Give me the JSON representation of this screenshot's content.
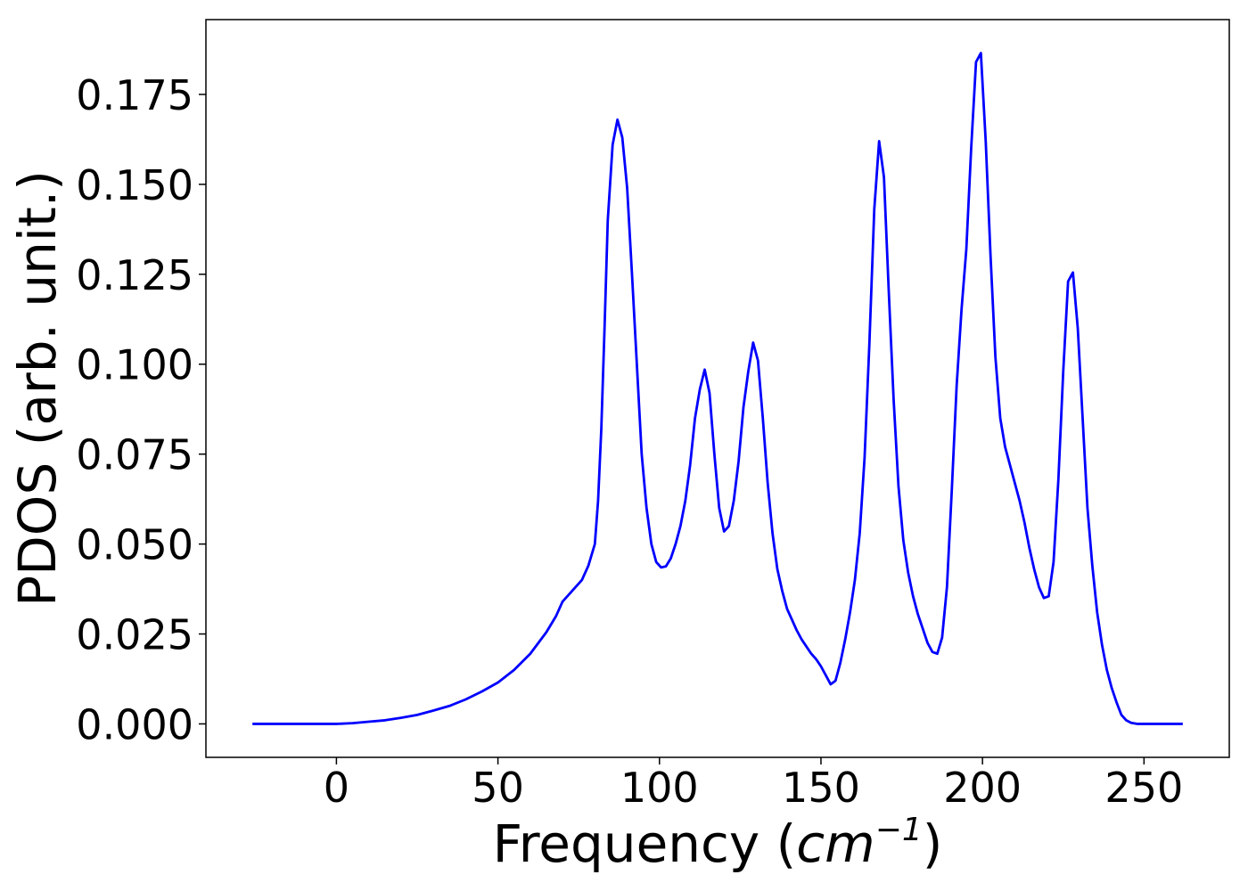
{
  "chart_data": {
    "type": "line",
    "xlabel": [
      "Frequency (",
      "cm",
      "−1",
      ")"
    ],
    "ylabel": "PDOS (arb. unit.)",
    "xlim": [
      -40.4,
      276.4
    ],
    "ylim": [
      -0.0093,
      0.1958
    ],
    "xticks": [
      0,
      50,
      100,
      150,
      200,
      250
    ],
    "yticks": [
      {
        "value": 0,
        "label": "0.000"
      },
      {
        "value": 0.025,
        "label": "0.025"
      },
      {
        "value": 0.05,
        "label": "0.050"
      },
      {
        "value": 0.075,
        "label": "0.075"
      },
      {
        "value": 0.1,
        "label": "0.100"
      },
      {
        "value": 0.125,
        "label": "0.125"
      },
      {
        "value": 0.15,
        "label": "0.150"
      },
      {
        "value": 0.175,
        "label": "0.175"
      }
    ],
    "grid": false,
    "x": [
      -26,
      0,
      5,
      10,
      15,
      20,
      25,
      30,
      35,
      40,
      45,
      50,
      55,
      60,
      65,
      68,
      70,
      73,
      76,
      78,
      80,
      81,
      82,
      83,
      84,
      85.5,
      87,
      88.5,
      90,
      91.5,
      93,
      94.5,
      96,
      97.5,
      99,
      100.5,
      102,
      103.5,
      105,
      106.5,
      108,
      109.5,
      111,
      112.5,
      114,
      115.5,
      117,
      118.5,
      120,
      121.5,
      123,
      124.5,
      126,
      127.5,
      129,
      130.5,
      132,
      133.5,
      135,
      136.5,
      138,
      139.5,
      141,
      142.5,
      144,
      145.5,
      147,
      148.5,
      150,
      151.5,
      153,
      154.5,
      156,
      157.5,
      159,
      160.5,
      162,
      163.5,
      165,
      166.5,
      168,
      169.5,
      171,
      172.5,
      174,
      175.5,
      177,
      178.5,
      180,
      181.5,
      183,
      184.5,
      186,
      187.5,
      189,
      190.5,
      192,
      193.5,
      195,
      196.5,
      198,
      199.5,
      201,
      202.5,
      204,
      205.5,
      207,
      208.5,
      210,
      211.5,
      213,
      214.5,
      216,
      217.5,
      219,
      220.5,
      222,
      223.5,
      225,
      226.5,
      228,
      229.5,
      231,
      232.5,
      234,
      235.5,
      237,
      238.5,
      240,
      241.5,
      243,
      244.5,
      246,
      248,
      262
    ],
    "series": [
      {
        "color": "#0000ff",
        "values": [
          0,
          0,
          0.0002,
          0.0006,
          0.001,
          0.0017,
          0.0025,
          0.0037,
          0.005,
          0.0068,
          0.009,
          0.0115,
          0.015,
          0.0195,
          0.0255,
          0.03,
          0.034,
          0.037,
          0.04,
          0.044,
          0.05,
          0.062,
          0.082,
          0.11,
          0.14,
          0.161,
          0.168,
          0.163,
          0.149,
          0.125,
          0.1,
          0.075,
          0.06,
          0.05,
          0.045,
          0.0435,
          0.0438,
          0.046,
          0.05,
          0.055,
          0.062,
          0.072,
          0.085,
          0.093,
          0.0985,
          0.092,
          0.075,
          0.06,
          0.0535,
          0.055,
          0.062,
          0.073,
          0.088,
          0.098,
          0.106,
          0.101,
          0.085,
          0.067,
          0.053,
          0.043,
          0.037,
          0.032,
          0.029,
          0.026,
          0.0235,
          0.0215,
          0.0195,
          0.018,
          0.016,
          0.0135,
          0.011,
          0.012,
          0.017,
          0.0235,
          0.031,
          0.04,
          0.053,
          0.074,
          0.106,
          0.143,
          0.162,
          0.152,
          0.12,
          0.09,
          0.066,
          0.051,
          0.042,
          0.0355,
          0.0305,
          0.0265,
          0.0225,
          0.02,
          0.0195,
          0.024,
          0.038,
          0.065,
          0.094,
          0.115,
          0.132,
          0.16,
          0.184,
          0.1865,
          0.162,
          0.13,
          0.102,
          0.085,
          0.077,
          0.072,
          0.067,
          0.062,
          0.056,
          0.049,
          0.043,
          0.038,
          0.035,
          0.0355,
          0.045,
          0.068,
          0.098,
          0.123,
          0.1255,
          0.11,
          0.085,
          0.06,
          0.044,
          0.031,
          0.022,
          0.015,
          0.01,
          0.006,
          0.0025,
          0.001,
          0.0003,
          0,
          0
        ]
      }
    ]
  }
}
